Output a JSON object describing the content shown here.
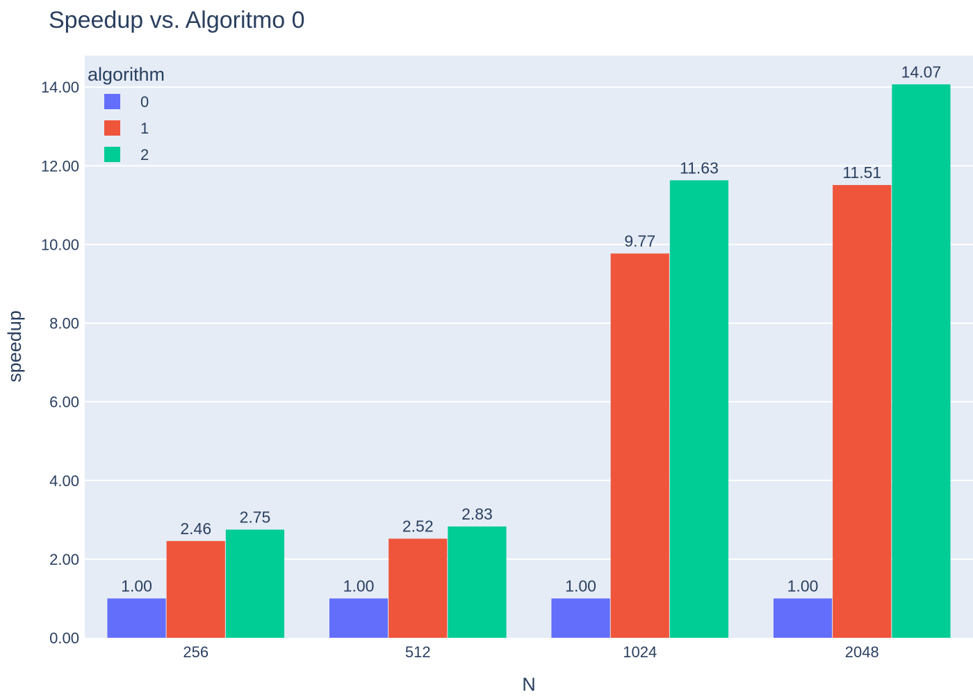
{
  "chart_data": {
    "type": "bar",
    "title": "Speedup vs. Algoritmo 0",
    "xlabel": "N",
    "ylabel": "speedup",
    "categories": [
      "256",
      "512",
      "1024",
      "2048"
    ],
    "series": [
      {
        "name": "0",
        "color": "#636efa",
        "values": [
          1.0,
          1.0,
          1.0,
          1.0
        ],
        "labels": [
          "1.00",
          "1.00",
          "1.00",
          "1.00"
        ]
      },
      {
        "name": "1",
        "color": "#ef553b",
        "values": [
          2.46,
          2.52,
          9.77,
          11.51
        ],
        "labels": [
          "2.46",
          "2.52",
          "9.77",
          "11.51"
        ]
      },
      {
        "name": "2",
        "color": "#00cc96",
        "values": [
          2.75,
          2.83,
          11.63,
          14.07
        ],
        "labels": [
          "2.75",
          "2.83",
          "11.63",
          "14.07"
        ]
      }
    ],
    "ylim": [
      0,
      14.8
    ],
    "yticks": [
      0,
      2,
      4,
      6,
      8,
      10,
      12,
      14
    ],
    "ytick_labels": [
      "0.00",
      "2.00",
      "4.00",
      "6.00",
      "8.00",
      "10.00",
      "12.00",
      "14.00"
    ],
    "legend": {
      "title": "algorithm",
      "placement": "top-left"
    },
    "grid": true,
    "plot_background": "#e5ecf6"
  }
}
